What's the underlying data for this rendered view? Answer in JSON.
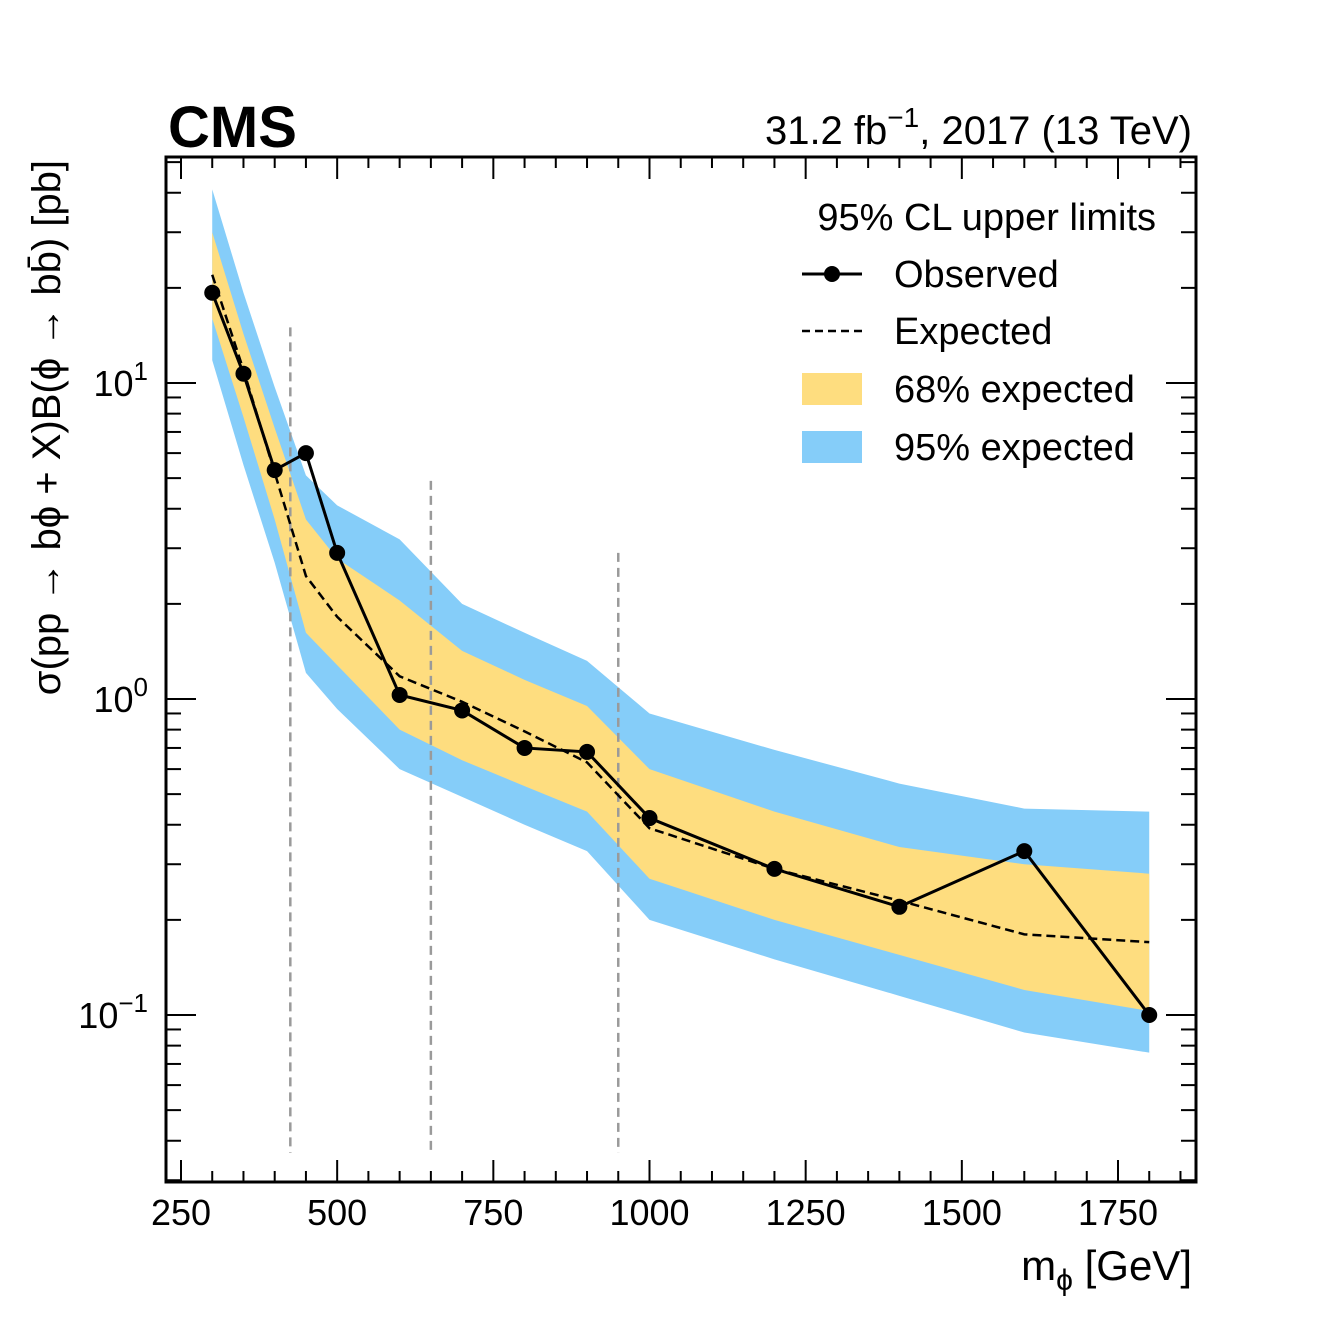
{
  "header": {
    "experiment": "CMS",
    "lumi_value": "31.2 fb",
    "lumi_exponent": "−1",
    "lumi_suffix": ", 2017 (13 TeV)"
  },
  "axes": {
    "xlabel": "m",
    "xlabel_sub": "ϕ",
    "xlabel_unit": " [GeV]",
    "ylabel": "σ(pp → bϕ + X)B(ϕ → bb̄) [pb]",
    "ytick_base": "10",
    "ytick_exponents": [
      "−1",
      "0",
      "1"
    ]
  },
  "legend": {
    "title": "95% CL upper limits",
    "observed": "Observed",
    "expected": "Expected",
    "band68": "68% expected",
    "band95": "95% expected"
  },
  "colors": {
    "band68": "#fedd7f",
    "band95": "#85cdf9",
    "vlines": "#9a9a9a"
  },
  "chart_data": {
    "type": "line",
    "title": "CMS",
    "xlabel": "m_ϕ [GeV]",
    "ylabel": "σ(pp → bϕ + X)B(ϕ → bb̄) [pb]",
    "xscale": "linear",
    "yscale": "log",
    "xlim": [
      225,
      1875
    ],
    "ylim": [
      0.034,
      50
    ],
    "xticks": [
      250,
      500,
      750,
      1000,
      1250,
      1500,
      1750
    ],
    "yticks": [
      0.1,
      1,
      10
    ],
    "legend_position": "top-right",
    "observed": {
      "name": "Observed",
      "x": [
        300,
        350,
        400,
        450,
        500,
        600,
        700,
        800,
        900,
        1000,
        1200,
        1400,
        1600,
        1800
      ],
      "y": [
        19.3,
        10.7,
        5.3,
        6.0,
        2.9,
        1.03,
        0.92,
        0.7,
        0.68,
        0.42,
        0.29,
        0.22,
        0.33,
        0.1
      ]
    },
    "expected": {
      "name": "Expected",
      "x": [
        300,
        350,
        400,
        450,
        500,
        600,
        700,
        800,
        900,
        1000,
        1200,
        1400,
        1600,
        1800
      ],
      "y": [
        22.0,
        11.0,
        5.2,
        2.45,
        1.82,
        1.18,
        0.98,
        0.79,
        0.63,
        0.39,
        0.29,
        0.23,
        0.18,
        0.17
      ]
    },
    "band68": {
      "name": "68% expected",
      "x": [
        300,
        350,
        400,
        450,
        500,
        600,
        700,
        800,
        900,
        1000,
        1200,
        1400,
        1600,
        1800
      ],
      "low": [
        16.0,
        7.8,
        3.7,
        1.62,
        1.28,
        0.8,
        0.64,
        0.53,
        0.44,
        0.27,
        0.2,
        0.155,
        0.12,
        0.103
      ],
      "high": [
        30.0,
        14.3,
        7.2,
        3.7,
        2.78,
        2.05,
        1.42,
        1.15,
        0.95,
        0.6,
        0.44,
        0.34,
        0.3,
        0.28
      ]
    },
    "band95": {
      "name": "95% expected",
      "x": [
        300,
        350,
        400,
        450,
        500,
        600,
        700,
        800,
        900,
        1000,
        1200,
        1400,
        1600,
        1800
      ],
      "low": [
        11.8,
        5.5,
        2.7,
        1.21,
        0.93,
        0.6,
        0.49,
        0.4,
        0.33,
        0.2,
        0.15,
        0.115,
        0.088,
        0.076
      ],
      "high": [
        41.0,
        19.3,
        9.7,
        5.1,
        4.1,
        3.2,
        2.0,
        1.62,
        1.32,
        0.9,
        0.69,
        0.54,
        0.45,
        0.44
      ]
    },
    "vertical_lines": [
      {
        "x": 425,
        "ytop": 15.0
      },
      {
        "x": 650,
        "ytop": 4.9
      },
      {
        "x": 950,
        "ytop": 2.9
      }
    ]
  }
}
